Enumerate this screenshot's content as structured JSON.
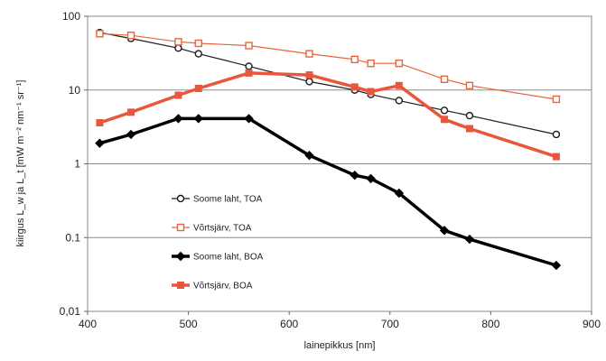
{
  "chart_data": {
    "type": "line",
    "title": "",
    "xlabel": "lainepikkus [nm]",
    "ylabel": "kiirgus L_w ja L_t [mW m⁻² nm⁻¹ sr⁻¹]",
    "xlim": [
      400,
      900
    ],
    "ylim": [
      0.01,
      100
    ],
    "yscale": "log",
    "x_ticks": [
      "400",
      "500",
      "600",
      "700",
      "800",
      "900"
    ],
    "y_ticks": [
      "0,01",
      "0.1",
      "1",
      "10",
      "100"
    ],
    "grid": "horizontal",
    "legend_position": "inside-bottom-left",
    "series": [
      {
        "name": "Soome laht, TOA",
        "color": "#1a1a1a",
        "marker": "circle-open",
        "line_weight": "thin",
        "points": [
          [
            412,
            60
          ],
          [
            443,
            50
          ],
          [
            490,
            37
          ],
          [
            510,
            31
          ],
          [
            560,
            21
          ],
          [
            620,
            13
          ],
          [
            665,
            10
          ],
          [
            681,
            8.7
          ],
          [
            709,
            7.2
          ],
          [
            754,
            5.3
          ],
          [
            779,
            4.5
          ],
          [
            865,
            2.5
          ]
        ]
      },
      {
        "name": "Võrtsjärv, TOA",
        "color": "#e8643c",
        "marker": "square-open",
        "line_weight": "thin",
        "points": [
          [
            412,
            58
          ],
          [
            443,
            55
          ],
          [
            490,
            45
          ],
          [
            510,
            43
          ],
          [
            560,
            40
          ],
          [
            620,
            31
          ],
          [
            665,
            26
          ],
          [
            681,
            23
          ],
          [
            709,
            23
          ],
          [
            754,
            14
          ],
          [
            779,
            11.5
          ],
          [
            865,
            7.5
          ]
        ]
      },
      {
        "name": "Soome laht, BOA",
        "color": "#000000",
        "marker": "diamond-filled",
        "line_weight": "thick",
        "points": [
          [
            412,
            1.9
          ],
          [
            443,
            2.5
          ],
          [
            490,
            4.1
          ],
          [
            510,
            4.1
          ],
          [
            560,
            4.1
          ],
          [
            620,
            1.3
          ],
          [
            665,
            0.7
          ],
          [
            681,
            0.63
          ],
          [
            709,
            0.4
          ],
          [
            754,
            0.125
          ],
          [
            779,
            0.095
          ],
          [
            865,
            0.042
          ]
        ]
      },
      {
        "name": "Võrtsjärv, BOA",
        "color": "#e8563c",
        "marker": "square-filled",
        "line_weight": "thick",
        "points": [
          [
            412,
            3.6
          ],
          [
            443,
            5
          ],
          [
            490,
            8.5
          ],
          [
            510,
            10.5
          ],
          [
            560,
            17
          ],
          [
            620,
            16
          ],
          [
            665,
            11
          ],
          [
            681,
            9.5
          ],
          [
            709,
            11.5
          ],
          [
            754,
            4
          ],
          [
            779,
            3
          ],
          [
            865,
            1.25
          ]
        ]
      }
    ]
  }
}
